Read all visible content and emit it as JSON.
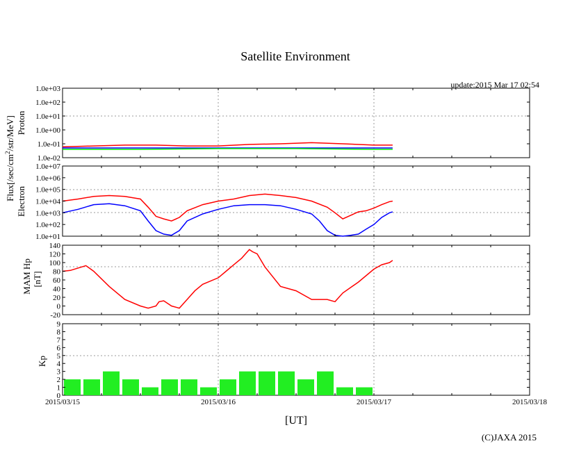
{
  "page": {
    "title": "Satellite Environment",
    "update": "update:2015 Mar 17 02:54",
    "copyright": "(C)JAXA 2015",
    "x_axis_label": "[UT]",
    "x_tick_labels": [
      "2015/03/15",
      "2015/03/16",
      "2015/03/17",
      "2015/03/18"
    ],
    "shared_ylabel": "Flux[/sec/cm",
    "shared_ylabel_sup": "2",
    "shared_ylabel_tail": "/str/MeV]"
  },
  "colors": {
    "proton_red": "#ff0000",
    "proton_blue": "#0000ff",
    "proton_green": "#00ee00",
    "electron_red": "#ff0000",
    "electron_blue": "#0000ff",
    "mag": "#ff0000",
    "kp_bar": "#22ee22",
    "grid": "#999999"
  },
  "chart_data": [
    {
      "type": "line",
      "name": "proton",
      "ylabel": "Proton",
      "yscale": "log",
      "ylim": [
        0.01,
        1000
      ],
      "xlim": [
        0,
        3
      ],
      "x_unit": "days since 2015/03/15 00:00 UT",
      "yticks": [
        "1.0e-02",
        "1.0e-01",
        "1.0e+00",
        "1.0e+01",
        "1.0e+02",
        "1.0e+03"
      ],
      "series": [
        {
          "name": "proton-red",
          "color_key": "proton_red",
          "x": [
            0,
            0.2,
            0.4,
            0.6,
            0.8,
            1.0,
            1.2,
            1.4,
            1.6,
            1.8,
            2.0,
            2.12
          ],
          "y": [
            0.06,
            0.07,
            0.08,
            0.08,
            0.07,
            0.07,
            0.09,
            0.1,
            0.12,
            0.1,
            0.08,
            0.08
          ]
        },
        {
          "name": "proton-blue",
          "color_key": "proton_blue",
          "x": [
            0,
            0.2,
            0.4,
            0.6,
            0.8,
            1.0,
            1.2,
            1.4,
            1.6,
            1.8,
            2.0,
            2.12
          ],
          "y": [
            0.05,
            0.05,
            0.05,
            0.05,
            0.05,
            0.05,
            0.05,
            0.05,
            0.05,
            0.05,
            0.05,
            0.05
          ]
        },
        {
          "name": "proton-green",
          "color_key": "proton_green",
          "x": [
            0,
            0.5,
            1.0,
            1.5,
            2.0,
            2.12
          ],
          "y": [
            0.04,
            0.04,
            0.045,
            0.045,
            0.04,
            0.04
          ]
        }
      ]
    },
    {
      "type": "line",
      "name": "electron",
      "ylabel": "Electron",
      "yscale": "log",
      "ylim": [
        10,
        10000000
      ],
      "xlim": [
        0,
        3
      ],
      "yticks": [
        "1.0e+01",
        "1.0e+02",
        "1.0e+03",
        "1.0e+04",
        "1.0e+05",
        "1.0e+06",
        "1.0e+07"
      ],
      "series": [
        {
          "name": "electron-high",
          "color_key": "electron_red",
          "x": [
            0,
            0.1,
            0.2,
            0.3,
            0.4,
            0.5,
            0.55,
            0.6,
            0.65,
            0.7,
            0.75,
            0.8,
            0.9,
            1.0,
            1.1,
            1.2,
            1.3,
            1.4,
            1.5,
            1.6,
            1.7,
            1.75,
            1.8,
            1.85,
            1.9,
            1.95,
            2.0,
            2.05,
            2.1,
            2.12
          ],
          "y": [
            10000,
            15000,
            25000,
            30000,
            25000,
            15000,
            3000,
            500,
            300,
            200,
            400,
            1500,
            5000,
            10000,
            15000,
            30000,
            40000,
            30000,
            20000,
            10000,
            3000,
            1000,
            300,
            600,
            1200,
            1500,
            2500,
            5000,
            9000,
            10000
          ]
        },
        {
          "name": "electron-low",
          "color_key": "electron_blue",
          "x": [
            0,
            0.1,
            0.2,
            0.3,
            0.4,
            0.5,
            0.55,
            0.6,
            0.65,
            0.7,
            0.75,
            0.8,
            0.9,
            1.0,
            1.1,
            1.2,
            1.3,
            1.4,
            1.5,
            1.6,
            1.65,
            1.7,
            1.75,
            1.8,
            1.85,
            1.9,
            1.95,
            2.0,
            2.05,
            2.1,
            2.12
          ],
          "y": [
            1000,
            2000,
            5000,
            6000,
            4000,
            1500,
            200,
            30,
            15,
            12,
            30,
            200,
            800,
            2000,
            4000,
            5000,
            5000,
            4000,
            2000,
            800,
            200,
            30,
            12,
            10,
            12,
            15,
            40,
            100,
            400,
            1000,
            1200
          ]
        }
      ]
    },
    {
      "type": "line",
      "name": "mam-hp",
      "ylabel": "MAM Hp",
      "ylabel2": "[nT]",
      "ylim": [
        -20,
        140
      ],
      "xlim": [
        0,
        3
      ],
      "yticks": [
        "-20",
        "0",
        "20",
        "40",
        "60",
        "80",
        "100",
        "120",
        "140"
      ],
      "series": [
        {
          "name": "mam-hp",
          "color_key": "mag",
          "x": [
            0,
            0.05,
            0.15,
            0.2,
            0.3,
            0.4,
            0.5,
            0.55,
            0.6,
            0.62,
            0.65,
            0.7,
            0.75,
            0.8,
            0.85,
            0.9,
            1.0,
            1.05,
            1.1,
            1.15,
            1.2,
            1.22,
            1.25,
            1.3,
            1.4,
            1.5,
            1.6,
            1.7,
            1.75,
            1.8,
            1.9,
            2.0,
            2.05,
            2.1,
            2.12
          ],
          "y": [
            80,
            82,
            93,
            80,
            45,
            15,
            0,
            -5,
            0,
            10,
            12,
            0,
            -5,
            15,
            35,
            50,
            65,
            80,
            95,
            110,
            130,
            125,
            120,
            90,
            45,
            35,
            15,
            15,
            10,
            30,
            55,
            85,
            95,
            100,
            105
          ]
        }
      ]
    },
    {
      "type": "bar",
      "name": "kp",
      "ylabel": "Kp",
      "ylim": [
        0,
        9
      ],
      "xlim": [
        0,
        3
      ],
      "yticks": [
        "0",
        "1",
        "2",
        "3",
        "4",
        "5",
        "6",
        "7",
        "8",
        "9"
      ],
      "x_start": [
        0,
        0.125,
        0.25,
        0.375,
        0.5,
        0.625,
        0.75,
        0.875,
        1.0,
        1.125,
        1.25,
        1.375,
        1.5,
        1.625,
        1.75,
        1.875,
        2.0
      ],
      "bar_width": 0.125,
      "values": [
        2,
        2,
        3,
        2,
        1,
        2,
        2,
        1,
        2,
        3,
        3,
        3,
        2,
        3,
        1,
        1,
        0
      ]
    }
  ]
}
